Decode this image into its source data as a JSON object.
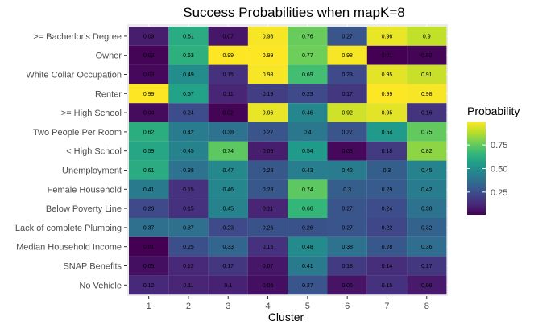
{
  "chart_data": {
    "type": "heatmap",
    "title": "Success Probabilities when mapK=8",
    "xlabel": "Cluster",
    "ylabel": "",
    "x": [
      "1",
      "2",
      "3",
      "4",
      "5",
      "6",
      "7",
      "8"
    ],
    "y": [
      ">= Bacherlor's Degree",
      "Owner",
      "White Collar Occupation",
      "Renter",
      ">= High School",
      "Two People Per Room",
      "< High School",
      "Unemployment",
      "Female Household",
      "Below Poverty Line",
      "Lack of complete Plumbing",
      "Median Household Income",
      "SNAP Benefits",
      "No Vehicle"
    ],
    "values": [
      [
        0.09,
        0.61,
        0.07,
        0.98,
        0.76,
        0.27,
        0.96,
        0.9
      ],
      [
        0.02,
        0.63,
        0.99,
        0.99,
        0.77,
        0.98,
        0.01,
        0.02
      ],
      [
        0.03,
        0.49,
        0.15,
        0.98,
        0.69,
        0.23,
        0.95,
        0.91
      ],
      [
        0.99,
        0.57,
        0.11,
        0.19,
        0.23,
        0.17,
        0.99,
        0.98
      ],
      [
        0.04,
        0.24,
        0.02,
        0.96,
        0.46,
        0.92,
        0.95,
        0.16
      ],
      [
        0.62,
        0.42,
        0.38,
        0.27,
        0.4,
        0.27,
        0.54,
        0.75
      ],
      [
        0.59,
        0.45,
        0.74,
        0.09,
        0.54,
        0.03,
        0.18,
        0.82
      ],
      [
        0.61,
        0.38,
        0.47,
        0.28,
        0.43,
        0.42,
        0.3,
        0.45
      ],
      [
        0.41,
        0.15,
        0.46,
        0.28,
        0.74,
        0.3,
        0.29,
        0.42
      ],
      [
        0.23,
        0.15,
        0.45,
        0.11,
        0.66,
        0.27,
        0.24,
        0.38
      ],
      [
        0.37,
        0.37,
        0.23,
        0.26,
        0.26,
        0.27,
        0.22,
        0.32
      ],
      [
        0.01,
        0.25,
        0.33,
        0.15,
        0.48,
        0.38,
        0.28,
        0.36
      ],
      [
        0.05,
        0.12,
        0.17,
        0.07,
        0.41,
        0.18,
        0.14,
        0.17
      ],
      [
        0.12,
        0.11,
        0.1,
        0.05,
        0.27,
        0.06,
        0.15,
        0.08
      ]
    ],
    "color_scale": "viridis",
    "color_range": [
      0.01,
      0.99
    ],
    "legend": {
      "title": "Probability",
      "ticks": [
        0.25,
        0.5,
        0.75
      ],
      "tick_labels": [
        "0.25",
        "0.50",
        "0.75"
      ],
      "position": "right"
    },
    "grid": true
  },
  "colors": {
    "panel_background": "#ebebeb",
    "grid": "#ffffff"
  }
}
